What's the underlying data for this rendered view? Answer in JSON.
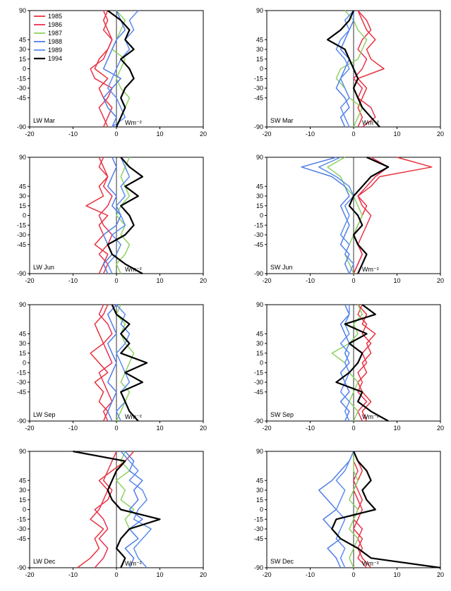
{
  "colors": {
    "1985": "#e8313a",
    "1986": "#e8314f",
    "1987": "#8fd160",
    "1988": "#4f7ce8",
    "1989": "#5a8cf0",
    "1994": "#000000"
  },
  "legend": {
    "position": "top-left of first panel",
    "entries": [
      "1985",
      "1986",
      "1987",
      "1988",
      "1989",
      "1994"
    ]
  },
  "chart_data": [
    {
      "type": "line",
      "label": "LW Mar",
      "xlabel": "Wm⁻²",
      "xlim": [
        -20,
        20
      ],
      "ylim": [
        -90,
        90
      ],
      "xticks": [
        -20,
        -10,
        0,
        10,
        20
      ],
      "yticks": [
        90,
        45,
        30,
        15,
        0,
        -15,
        -30,
        -45,
        -90
      ],
      "y": [
        -90,
        -75,
        -60,
        -45,
        -30,
        -15,
        0,
        15,
        30,
        45,
        60,
        75,
        90
      ],
      "series": [
        {
          "name": "1985",
          "x": [
            -3,
            -2,
            -1,
            -3,
            -4,
            -2,
            -5,
            -4,
            -2,
            -1,
            -2,
            -3,
            -2
          ]
        },
        {
          "name": "1986",
          "x": [
            -2,
            -3,
            -4,
            -2,
            -1,
            -5,
            -6,
            -3,
            -2,
            -1,
            -3,
            -2,
            -3
          ]
        },
        {
          "name": "1987",
          "x": [
            0,
            1,
            2,
            3,
            1,
            0,
            1,
            2,
            -1,
            0,
            1,
            2,
            0
          ]
        },
        {
          "name": "1988",
          "x": [
            -1,
            0,
            -2,
            -3,
            -1,
            1,
            -3,
            -2,
            -1,
            0,
            2,
            1,
            0
          ]
        },
        {
          "name": "1989",
          "x": [
            -1,
            2,
            1,
            0,
            -2,
            -1,
            0,
            1,
            3,
            2,
            4,
            3,
            5
          ]
        },
        {
          "name": "1994",
          "x": [
            0,
            1,
            2,
            1,
            2,
            4,
            3,
            1,
            4,
            2,
            3,
            1,
            -2
          ]
        }
      ]
    },
    {
      "type": "line",
      "label": "SW Mar",
      "xlabel": "Wm⁻²",
      "xlim": [
        -20,
        20
      ],
      "ylim": [
        -90,
        90
      ],
      "xticks": [
        -20,
        -10,
        0,
        10,
        20
      ],
      "yticks": [
        90,
        45,
        30,
        15,
        0,
        -15,
        -30,
        -45,
        -90
      ],
      "y": [
        -90,
        -75,
        -60,
        -45,
        -30,
        -15,
        0,
        15,
        30,
        45,
        60,
        75,
        90
      ],
      "series": [
        {
          "name": "1985",
          "x": [
            1,
            2,
            1,
            2,
            3,
            1,
            7,
            4,
            3,
            5,
            3,
            2,
            1
          ]
        },
        {
          "name": "1986",
          "x": [
            2,
            5,
            4,
            1,
            2,
            0,
            2,
            3,
            1,
            2,
            4,
            3,
            1
          ]
        },
        {
          "name": "1987",
          "x": [
            0,
            1,
            2,
            -1,
            -2,
            -4,
            -3,
            1,
            2,
            3,
            1,
            0,
            -2
          ]
        },
        {
          "name": "1988",
          "x": [
            -2,
            -3,
            -1,
            -2,
            -4,
            -3,
            -2,
            -1,
            -3,
            -2,
            -1,
            0,
            0
          ]
        },
        {
          "name": "1989",
          "x": [
            -1,
            -2,
            -3,
            -1,
            -2,
            -3,
            -1,
            -2,
            -4,
            -3,
            -1,
            -2,
            0
          ]
        },
        {
          "name": "1994",
          "x": [
            6,
            4,
            2,
            1,
            0,
            1,
            0,
            -1,
            -2,
            -6,
            -3,
            -1,
            0
          ]
        }
      ]
    },
    {
      "type": "line",
      "label": "LW Jun",
      "xlabel": "Wm⁻²",
      "xlim": [
        -20,
        20
      ],
      "ylim": [
        -90,
        90
      ],
      "xticks": [
        -20,
        -10,
        0,
        10,
        20
      ],
      "yticks": [
        90,
        45,
        30,
        15,
        0,
        -15,
        -30,
        -45,
        -90
      ],
      "y": [
        -90,
        -75,
        -60,
        -45,
        -30,
        -15,
        0,
        15,
        30,
        45,
        60,
        75,
        90
      ],
      "series": [
        {
          "name": "1985",
          "x": [
            -4,
            -3,
            -2,
            -5,
            -3,
            -4,
            -2,
            -7,
            -3,
            -4,
            -2,
            -3,
            -4
          ]
        },
        {
          "name": "1986",
          "x": [
            -3,
            -2,
            -4,
            -2,
            -1,
            -3,
            -4,
            -2,
            -1,
            -3,
            -2,
            -4,
            -3
          ]
        },
        {
          "name": "1987",
          "x": [
            1,
            0,
            2,
            3,
            1,
            2,
            0,
            1,
            3,
            2,
            1,
            2,
            3
          ]
        },
        {
          "name": "1988",
          "x": [
            -2,
            -3,
            -1,
            -2,
            -3,
            0,
            1,
            -1,
            0,
            -2,
            -1,
            0,
            -1
          ]
        },
        {
          "name": "1989",
          "x": [
            -1,
            -2,
            0,
            1,
            -1,
            2,
            1,
            0,
            2,
            1,
            3,
            2,
            1
          ]
        },
        {
          "name": "1994",
          "x": [
            6,
            2,
            -1,
            -2,
            2,
            4,
            3,
            1,
            5,
            2,
            6,
            3,
            1
          ]
        }
      ]
    },
    {
      "type": "line",
      "label": "SW Jun",
      "xlabel": "Wm⁻²",
      "xlim": [
        -20,
        20
      ],
      "ylim": [
        -90,
        90
      ],
      "xticks": [
        -20,
        -10,
        0,
        10,
        20
      ],
      "yticks": [
        90,
        45,
        30,
        15,
        0,
        -15,
        -30,
        -45,
        -90
      ],
      "y": [
        -90,
        -75,
        -60,
        -45,
        -30,
        -15,
        0,
        15,
        30,
        45,
        60,
        75,
        90
      ],
      "series": [
        {
          "name": "1985",
          "x": [
            0,
            1,
            2,
            1,
            0,
            1,
            2,
            3,
            1,
            4,
            6,
            18,
            10
          ]
        },
        {
          "name": "1986",
          "x": [
            0,
            1,
            2,
            1,
            2,
            3,
            4,
            2,
            1,
            3,
            5,
            8,
            4
          ]
        },
        {
          "name": "1987",
          "x": [
            0,
            -1,
            -2,
            -1,
            0,
            1,
            2,
            1,
            0,
            -2,
            -3,
            -6,
            -2
          ]
        },
        {
          "name": "1988",
          "x": [
            -1,
            -2,
            -1,
            -3,
            -2,
            -1,
            -2,
            -3,
            -1,
            -2,
            -5,
            -12,
            -4
          ]
        },
        {
          "name": "1989",
          "x": [
            -1,
            0,
            -2,
            -1,
            -3,
            -2,
            -1,
            -2,
            0,
            -1,
            -4,
            -8,
            -3
          ]
        },
        {
          "name": "1994",
          "x": [
            1,
            2,
            3,
            1,
            0,
            2,
            1,
            -1,
            0,
            2,
            4,
            8,
            3
          ]
        }
      ]
    },
    {
      "type": "line",
      "label": "LW Sep",
      "xlabel": "Wm⁻²",
      "xlim": [
        -20,
        20
      ],
      "ylim": [
        -90,
        90
      ],
      "xticks": [
        -20,
        -10,
        0,
        10,
        20
      ],
      "yticks": [
        90,
        45,
        30,
        15,
        0,
        -15,
        -30,
        -45,
        -90
      ],
      "y": [
        -90,
        -75,
        -60,
        -45,
        -30,
        -15,
        0,
        15,
        30,
        45,
        60,
        75,
        90
      ],
      "series": [
        {
          "name": "1985",
          "x": [
            -3,
            -2,
            -4,
            -3,
            -5,
            -2,
            -4,
            -6,
            -3,
            -4,
            -5,
            -3,
            -2
          ]
        },
        {
          "name": "1986",
          "x": [
            -2,
            -3,
            -1,
            -2,
            -3,
            -4,
            -1,
            -2,
            -3,
            -1,
            -2,
            -4,
            -3
          ]
        },
        {
          "name": "1987",
          "x": [
            0,
            1,
            2,
            3,
            1,
            2,
            3,
            4,
            2,
            1,
            2,
            0,
            1
          ]
        },
        {
          "name": "1988",
          "x": [
            -1,
            -2,
            -1,
            0,
            -2,
            -1,
            0,
            -1,
            -2,
            0,
            -1,
            -2,
            0
          ]
        },
        {
          "name": "1989",
          "x": [
            1,
            0,
            2,
            1,
            3,
            2,
            1,
            0,
            2,
            3,
            1,
            2,
            0
          ]
        },
        {
          "name": "1994",
          "x": [
            5,
            3,
            2,
            1,
            6,
            2,
            7,
            1,
            3,
            1,
            3,
            0,
            -1
          ]
        }
      ]
    },
    {
      "type": "line",
      "label": "SW Sep",
      "xlabel": "Wm⁻²",
      "xlim": [
        -20,
        20
      ],
      "ylim": [
        -90,
        90
      ],
      "xticks": [
        -20,
        -10,
        0,
        10,
        20
      ],
      "yticks": [
        90,
        45,
        30,
        15,
        0,
        -15,
        -30,
        -45,
        -90
      ],
      "y": [
        -90,
        -75,
        -60,
        -45,
        -30,
        -15,
        0,
        15,
        30,
        45,
        60,
        75,
        90
      ],
      "series": [
        {
          "name": "1985",
          "x": [
            3,
            2,
            4,
            2,
            1,
            3,
            2,
            4,
            3,
            5,
            2,
            3,
            1
          ]
        },
        {
          "name": "1986",
          "x": [
            2,
            1,
            3,
            1,
            2,
            1,
            3,
            2,
            4,
            2,
            3,
            1,
            2
          ]
        },
        {
          "name": "1987",
          "x": [
            0,
            1,
            -1,
            0,
            1,
            -1,
            -2,
            -5,
            -1,
            1,
            0,
            2,
            1
          ]
        },
        {
          "name": "1988",
          "x": [
            -2,
            -1,
            -3,
            -1,
            -2,
            -3,
            -1,
            -2,
            -1,
            -2,
            -3,
            -1,
            -2
          ]
        },
        {
          "name": "1989",
          "x": [
            -1,
            -2,
            -1,
            -3,
            -2,
            -1,
            -2,
            -1,
            -3,
            -1,
            -2,
            -1,
            -1
          ]
        },
        {
          "name": "1994",
          "x": [
            8,
            4,
            1,
            2,
            -4,
            -1,
            1,
            2,
            -1,
            3,
            -2,
            5,
            2
          ]
        }
      ]
    },
    {
      "type": "line",
      "label": "LW Dec",
      "xlabel": "Wm⁻²",
      "xlim": [
        -20,
        20
      ],
      "ylim": [
        -90,
        90
      ],
      "xticks": [
        -20,
        -10,
        0,
        10,
        20
      ],
      "yticks": [
        90,
        45,
        30,
        15,
        0,
        -15,
        -30,
        -45,
        -90
      ],
      "y": [
        -90,
        -75,
        -60,
        -45,
        -30,
        -15,
        0,
        15,
        30,
        45,
        60,
        75,
        90
      ],
      "series": [
        {
          "name": "1985",
          "x": [
            -9,
            -6,
            -4,
            -5,
            -3,
            -6,
            -4,
            -3,
            -2,
            -4,
            -1,
            2,
            4
          ]
        },
        {
          "name": "1986",
          "x": [
            -5,
            -3,
            -2,
            -4,
            -2,
            -3,
            -5,
            -2,
            -1,
            -3,
            -2,
            -1,
            0
          ]
        },
        {
          "name": "1987",
          "x": [
            1,
            2,
            0,
            1,
            3,
            2,
            4,
            1,
            2,
            0,
            3,
            1,
            2
          ]
        },
        {
          "name": "1988",
          "x": [
            3,
            4,
            2,
            5,
            3,
            6,
            3,
            5,
            4,
            6,
            3,
            4,
            2
          ]
        },
        {
          "name": "1989",
          "x": [
            7,
            5,
            4,
            6,
            8,
            4,
            5,
            7,
            6,
            3,
            5,
            3,
            1
          ]
        },
        {
          "name": "1994",
          "x": [
            1,
            2,
            0,
            1,
            3,
            10,
            1,
            -1,
            -2,
            -1,
            0,
            2,
            -10
          ]
        }
      ]
    },
    {
      "type": "line",
      "label": "SW Dec",
      "xlabel": "Wm⁻²",
      "xlim": [
        -20,
        20
      ],
      "ylim": [
        -90,
        90
      ],
      "xticks": [
        -20,
        -10,
        0,
        10,
        20
      ],
      "yticks": [
        90,
        45,
        30,
        15,
        0,
        -15,
        -30,
        -45,
        -90
      ],
      "y": [
        -90,
        -75,
        -60,
        -45,
        -30,
        -15,
        0,
        15,
        30,
        45,
        60,
        75,
        90
      ],
      "series": [
        {
          "name": "1985",
          "x": [
            4,
            2,
            1,
            2,
            0,
            1,
            2,
            1,
            0,
            1,
            2,
            1,
            0
          ]
        },
        {
          "name": "1986",
          "x": [
            3,
            1,
            2,
            1,
            2,
            0,
            1,
            2,
            1,
            0,
            1,
            0,
            0
          ]
        },
        {
          "name": "1987",
          "x": [
            0,
            -1,
            0,
            1,
            -1,
            0,
            1,
            -1,
            0,
            1,
            0,
            0,
            0
          ]
        },
        {
          "name": "1988",
          "x": [
            -3,
            -4,
            -6,
            -3,
            -5,
            -7,
            -4,
            -6,
            -8,
            -5,
            -3,
            -1,
            0
          ]
        },
        {
          "name": "1989",
          "x": [
            -2,
            -3,
            -2,
            -4,
            -3,
            -2,
            -4,
            -3,
            -2,
            -4,
            -2,
            -1,
            0
          ]
        },
        {
          "name": "1994",
          "x": [
            20,
            4,
            1,
            -3,
            -5,
            -4,
            5,
            3,
            2,
            4,
            3,
            1,
            0
          ]
        }
      ]
    }
  ]
}
